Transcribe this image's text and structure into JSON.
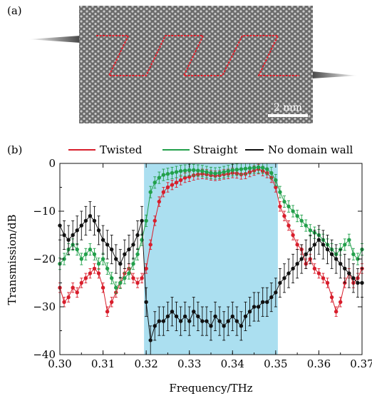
{
  "panel_a": {
    "label": "(a)",
    "scalebar_label": "2 mm"
  },
  "chart_data": {
    "type": "line",
    "panel_label": "(b)",
    "xlabel": "Frequency/THz",
    "ylabel": "Transmission/dB",
    "xlim": [
      0.3,
      0.37
    ],
    "ylim": [
      -40,
      0
    ],
    "x_ticks": [
      "0.30",
      "0.31",
      "0.32",
      "0.33",
      "0.34",
      "0.35",
      "0.36",
      "0.37"
    ],
    "y_ticks": [
      "0",
      "−10",
      "−20",
      "−30",
      "−40"
    ],
    "legend_position": "top",
    "shaded_band": {
      "x_start": 0.3195,
      "x_end": 0.3505,
      "color": "#abdff0"
    },
    "series": [
      {
        "name": "Twisted",
        "color": "#d81e2c",
        "x": [
          0.3,
          0.301,
          0.302,
          0.303,
          0.304,
          0.305,
          0.306,
          0.307,
          0.308,
          0.309,
          0.31,
          0.311,
          0.312,
          0.313,
          0.314,
          0.315,
          0.316,
          0.317,
          0.318,
          0.319,
          0.32,
          0.321,
          0.322,
          0.323,
          0.324,
          0.325,
          0.326,
          0.327,
          0.328,
          0.329,
          0.33,
          0.331,
          0.332,
          0.333,
          0.334,
          0.335,
          0.336,
          0.337,
          0.338,
          0.339,
          0.34,
          0.341,
          0.342,
          0.343,
          0.344,
          0.345,
          0.346,
          0.347,
          0.348,
          0.349,
          0.35,
          0.351,
          0.352,
          0.353,
          0.354,
          0.355,
          0.356,
          0.357,
          0.358,
          0.359,
          0.36,
          0.361,
          0.362,
          0.363,
          0.364,
          0.365,
          0.366,
          0.367,
          0.368,
          0.369,
          0.37
        ],
        "y": [
          -26,
          -29,
          -28,
          -26,
          -27,
          -25,
          -24,
          -23,
          -22,
          -23,
          -26,
          -31,
          -29,
          -27,
          -25,
          -23,
          -22,
          -24,
          -25,
          -24,
          -22,
          -17,
          -12,
          -8,
          -6,
          -5,
          -4.5,
          -4,
          -3.5,
          -3,
          -2.8,
          -2.5,
          -2.3,
          -2.2,
          -2.3,
          -2.5,
          -2.6,
          -2.5,
          -2.3,
          -2.2,
          -2.0,
          -2.1,
          -2.3,
          -2.2,
          -1.8,
          -1.5,
          -1.2,
          -1.6,
          -2.0,
          -3.0,
          -5.0,
          -9,
          -11,
          -13,
          -15,
          -17,
          -18,
          -21,
          -20,
          -22,
          -23,
          -24,
          -25,
          -28,
          -31,
          -29,
          -25,
          -23,
          -25,
          -24,
          -22
        ],
        "error": 1.0
      },
      {
        "name": "Straight",
        "color": "#22a04b",
        "x": [
          0.3,
          0.301,
          0.302,
          0.303,
          0.304,
          0.305,
          0.306,
          0.307,
          0.308,
          0.309,
          0.31,
          0.311,
          0.312,
          0.313,
          0.314,
          0.315,
          0.316,
          0.317,
          0.318,
          0.319,
          0.32,
          0.321,
          0.322,
          0.323,
          0.324,
          0.325,
          0.326,
          0.327,
          0.328,
          0.329,
          0.33,
          0.331,
          0.332,
          0.333,
          0.334,
          0.335,
          0.336,
          0.337,
          0.338,
          0.339,
          0.34,
          0.341,
          0.342,
          0.343,
          0.344,
          0.345,
          0.346,
          0.347,
          0.348,
          0.349,
          0.35,
          0.351,
          0.352,
          0.353,
          0.354,
          0.355,
          0.356,
          0.357,
          0.358,
          0.359,
          0.36,
          0.361,
          0.362,
          0.363,
          0.364,
          0.365,
          0.366,
          0.367,
          0.368,
          0.369,
          0.37
        ],
        "y": [
          -21,
          -20,
          -18,
          -17,
          -18,
          -20,
          -19,
          -18,
          -19,
          -21,
          -20,
          -22,
          -24,
          -26,
          -25,
          -24,
          -23,
          -21,
          -19,
          -16,
          -12,
          -6,
          -4,
          -3,
          -2.4,
          -2.2,
          -2.0,
          -1.8,
          -1.6,
          -1.5,
          -1.4,
          -1.4,
          -1.5,
          -1.6,
          -1.8,
          -2.0,
          -2.1,
          -2.0,
          -1.8,
          -1.6,
          -1.4,
          -1.3,
          -1.2,
          -1.1,
          -1.0,
          -0.9,
          -0.8,
          -0.9,
          -1.2,
          -2.0,
          -3.5,
          -6,
          -8,
          -9,
          -10,
          -11,
          -12,
          -13,
          -14,
          -14.5,
          -15,
          -16,
          -17,
          -18,
          -19,
          -18,
          -17,
          -16,
          -19,
          -20,
          -18
        ],
        "error": 1.2
      },
      {
        "name": "No domain wall",
        "color": "#111111",
        "x": [
          0.3,
          0.301,
          0.302,
          0.303,
          0.304,
          0.305,
          0.306,
          0.307,
          0.308,
          0.309,
          0.31,
          0.311,
          0.312,
          0.313,
          0.314,
          0.315,
          0.316,
          0.317,
          0.318,
          0.319,
          0.32,
          0.321,
          0.322,
          0.323,
          0.324,
          0.325,
          0.326,
          0.327,
          0.328,
          0.329,
          0.33,
          0.331,
          0.332,
          0.333,
          0.334,
          0.335,
          0.336,
          0.337,
          0.338,
          0.339,
          0.34,
          0.341,
          0.342,
          0.343,
          0.344,
          0.345,
          0.346,
          0.347,
          0.348,
          0.349,
          0.35,
          0.351,
          0.352,
          0.353,
          0.354,
          0.355,
          0.356,
          0.357,
          0.358,
          0.359,
          0.36,
          0.361,
          0.362,
          0.363,
          0.364,
          0.365,
          0.366,
          0.367,
          0.368,
          0.369,
          0.37
        ],
        "y": [
          -13,
          -15,
          -16,
          -15,
          -14,
          -13,
          -12,
          -11,
          -12,
          -14,
          -16,
          -17,
          -18,
          -20,
          -21,
          -19,
          -18,
          -17,
          -15,
          -12,
          -29,
          -37,
          -34,
          -33,
          -33,
          -32,
          -31,
          -32,
          -33,
          -32,
          -33,
          -31,
          -32,
          -33,
          -33,
          -34,
          -32,
          -33,
          -34,
          -33,
          -32,
          -33,
          -34,
          -32,
          -31,
          -30,
          -30,
          -29,
          -29,
          -28,
          -27,
          -25,
          -24,
          -23,
          -22,
          -21,
          -20,
          -19,
          -18,
          -17,
          -16,
          -17,
          -18,
          -19,
          -20,
          -21,
          -22,
          -23,
          -24,
          -25,
          -25
        ],
        "error": 3.0
      }
    ]
  }
}
